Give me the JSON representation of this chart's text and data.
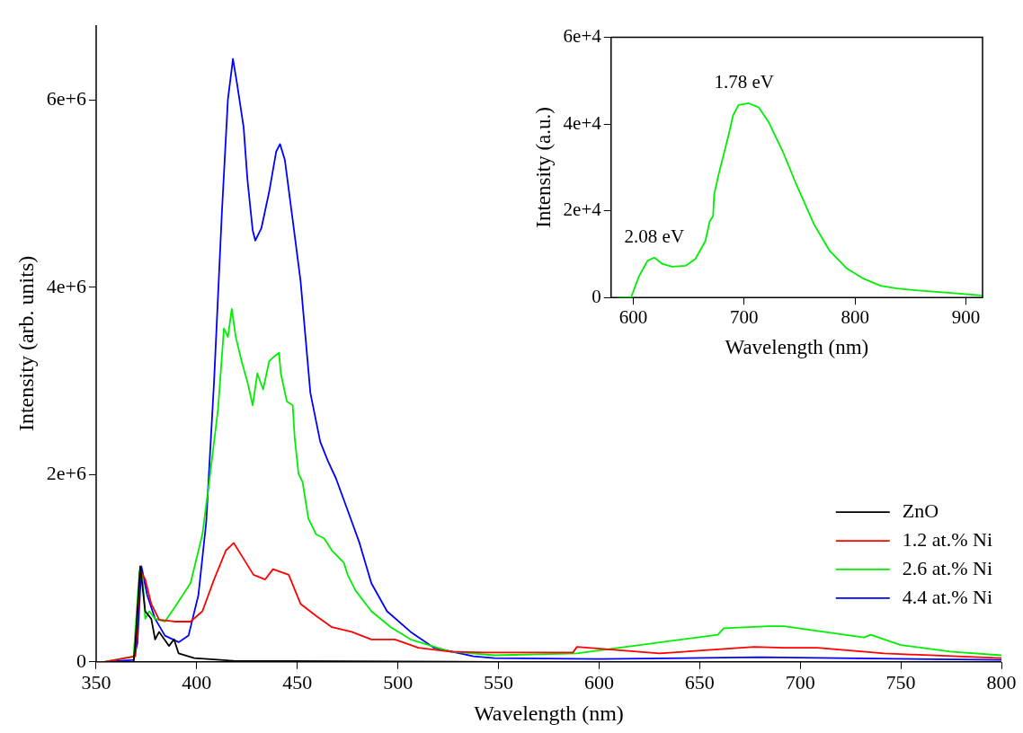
{
  "chart_data": [
    {
      "type": "line",
      "xlabel": "Wavelength (nm)",
      "ylabel": "Intensity (arb. units)",
      "xlim": [
        350,
        800
      ],
      "xticks": [
        350,
        400,
        450,
        500,
        550,
        600,
        650,
        700,
        750,
        800
      ],
      "ylim": [
        0,
        6800000
      ],
      "yticks": [
        0,
        {
          "value": 2000000,
          "label": "2e+6"
        },
        {
          "value": 4000000,
          "label": "4e+6"
        },
        {
          "value": 6000000,
          "label": "6e+6"
        }
      ],
      "grid": false,
      "legend": "bottom right",
      "marker": "none",
      "line_style": "solid",
      "series": [
        {
          "name": "ZnO",
          "color": "#000000",
          "x": [
            350,
            354,
            368.6,
            369.5,
            371.9,
            374.4,
            377.4,
            379.3,
            381.3,
            386.2,
            388.7,
            391,
            398.8,
            418.4,
            548,
            800
          ],
          "values": [
            0,
            0,
            0,
            200000,
            1020000,
            540000,
            460000,
            240000,
            320000,
            170000,
            240000,
            90000,
            40000,
            10000,
            0,
            0
          ]
        },
        {
          "name": "1.2 at.% Ni",
          "color": "#ff0000",
          "x": [
            350,
            354,
            369.5,
            371.9,
            374.4,
            377.4,
            381.3,
            389,
            396.9,
            402.8,
            408.6,
            414.5,
            418.4,
            423.3,
            428.2,
            434,
            437.9,
            445.7,
            451.6,
            459.4,
            467.2,
            477,
            486.8,
            498.5,
            510.2,
            525.9,
            543,
            587,
            589,
            630,
            677,
            692,
            708.6,
            741.7,
            800
          ],
          "values": [
            0,
            0,
            60000,
            970000,
            880000,
            620000,
            450000,
            430000,
            430000,
            540000,
            880000,
            1190000,
            1270000,
            1100000,
            930000,
            880000,
            990000,
            930000,
            620000,
            490000,
            370000,
            320000,
            240000,
            240000,
            150000,
            110000,
            100000,
            100000,
            160000,
            90000,
            160000,
            150000,
            150000,
            90000,
            40000
          ]
        },
        {
          "name": "2.6 at.% Ni",
          "color": "#00ee00",
          "x": [
            350,
            354,
            368.6,
            371.5,
            373,
            374.4,
            376.4,
            379.3,
            384.2,
            389,
            396.9,
            402.8,
            406.7,
            410.6,
            413.5,
            415.5,
            417.4,
            419.4,
            422.3,
            425.2,
            427.8,
            430.1,
            433,
            436,
            437.9,
            440.9,
            441.8,
            444.8,
            447.7,
            448.7,
            450.6,
            452.6,
            455.5,
            459.4,
            463.3,
            467.2,
            473.1,
            475,
            479,
            486.8,
            496.5,
            506.3,
            525.9,
            548,
            589,
            659,
            662,
            684,
            692,
            708.6,
            731.7,
            735,
            750,
            774.6,
            800
          ],
          "values": [
            0,
            0,
            60000,
            970000,
            930000,
            460000,
            540000,
            460000,
            430000,
            580000,
            840000,
            1360000,
            2010000,
            2700000,
            3560000,
            3470000,
            3770000,
            3470000,
            3210000,
            2990000,
            2740000,
            3080000,
            2910000,
            3210000,
            3250000,
            3300000,
            3080000,
            2780000,
            2740000,
            2390000,
            2010000,
            1920000,
            1530000,
            1360000,
            1320000,
            1190000,
            1060000,
            930000,
            760000,
            540000,
            370000,
            240000,
            110000,
            70000,
            90000,
            290000,
            360000,
            380000,
            380000,
            330000,
            260000,
            290000,
            180000,
            110000,
            70000
          ]
        },
        {
          "name": "4.4 at.% Ni",
          "color": "#0000ff",
          "x": [
            350,
            354,
            368.6,
            370.5,
            372.5,
            375.4,
            379.3,
            384.2,
            391,
            395.9,
            400.8,
            404.7,
            408.6,
            412.5,
            415.5,
            418,
            420,
            423.3,
            425.2,
            427.8,
            429.1,
            432.1,
            436,
            439.5,
            441.4,
            443.8,
            447.7,
            451.6,
            456.5,
            461.4,
            465.3,
            469.2,
            475,
            480.9,
            486.8,
            494.6,
            506.3,
            518,
            537.6,
            547.9,
            600,
            680,
            800
          ],
          "values": [
            0,
            0,
            20000,
            200000,
            1020000,
            710000,
            460000,
            280000,
            210000,
            280000,
            710000,
            1490000,
            2990000,
            4800000,
            6010000,
            6440000,
            6180000,
            5710000,
            5150000,
            4610000,
            4500000,
            4630000,
            5020000,
            5450000,
            5530000,
            5360000,
            4720000,
            4070000,
            2870000,
            2350000,
            2140000,
            1960000,
            1620000,
            1270000,
            840000,
            540000,
            320000,
            150000,
            60000,
            40000,
            30000,
            50000,
            20000
          ]
        }
      ]
    },
    {
      "type": "line",
      "xlabel": "Wavelength (nm)",
      "ylabel": "Intensity (a.u.)",
      "xlim": [
        580,
        915
      ],
      "xticks": [
        600,
        700,
        800,
        900
      ],
      "ylim": [
        0,
        60000
      ],
      "yticks": [
        0,
        {
          "value": 20000,
          "label": "2e+4"
        },
        {
          "value": 40000,
          "label": "4e+4"
        },
        {
          "value": 60000,
          "label": "6e+4"
        }
      ],
      "grid": false,
      "marker": "none",
      "line_style": "solid",
      "annotations": [
        {
          "text": "1.78 eV",
          "x": 700,
          "y": 44800
        },
        {
          "text": "2.08 eV",
          "x": 619,
          "y": 9200
        }
      ],
      "series": [
        {
          "color": "#00ee00",
          "x": [
            586,
            598,
            605,
            613,
            619,
            626,
            635,
            647,
            656,
            665,
            669,
            672,
            673,
            677,
            686,
            690,
            695,
            704,
            713,
            722,
            735,
            747,
            763,
            777,
            793,
            808,
            823,
            838,
            857,
            884,
            914
          ],
          "values": [
            0,
            0,
            4800,
            8500,
            9200,
            7800,
            7100,
            7300,
            8900,
            13000,
            17600,
            18800,
            23800,
            28400,
            37500,
            42000,
            44400,
            44800,
            43900,
            40500,
            33600,
            26100,
            16900,
            10800,
            6600,
            4300,
            2700,
            2100,
            1600,
            1100,
            500
          ]
        }
      ]
    }
  ]
}
